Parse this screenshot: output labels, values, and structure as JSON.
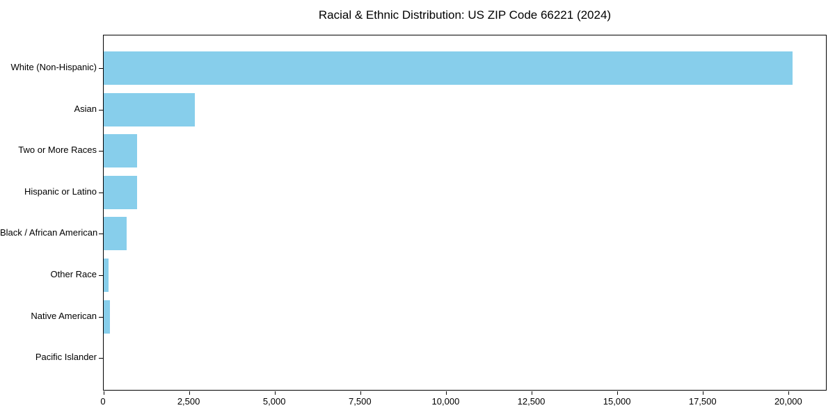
{
  "chart_data": {
    "type": "bar",
    "orientation": "horizontal",
    "title": "Racial & Ethnic Distribution: US ZIP Code 66221 (2024)",
    "categories": [
      "White (Non-Hispanic)",
      "Asian",
      "Two or More Races",
      "Hispanic or Latino",
      "Black / African American",
      "Other Race",
      "Native American",
      "Pacific Islander"
    ],
    "values": [
      20110,
      2670,
      980,
      975,
      660,
      140,
      190,
      0
    ],
    "xlabel": "",
    "ylabel": "",
    "xlim": [
      0,
      21120
    ],
    "x_ticks": [
      0,
      2500,
      5000,
      7500,
      10000,
      12500,
      15000,
      17500,
      20000
    ],
    "x_tick_labels": [
      "0",
      "2,500",
      "5,000",
      "7,500",
      "10,000",
      "12,500",
      "15,000",
      "17,500",
      "20,000"
    ],
    "bar_color": "#87CEEB",
    "axis_color": "#000000",
    "background_color": "#FFFFFF",
    "grid": false,
    "legend_position": "none"
  }
}
